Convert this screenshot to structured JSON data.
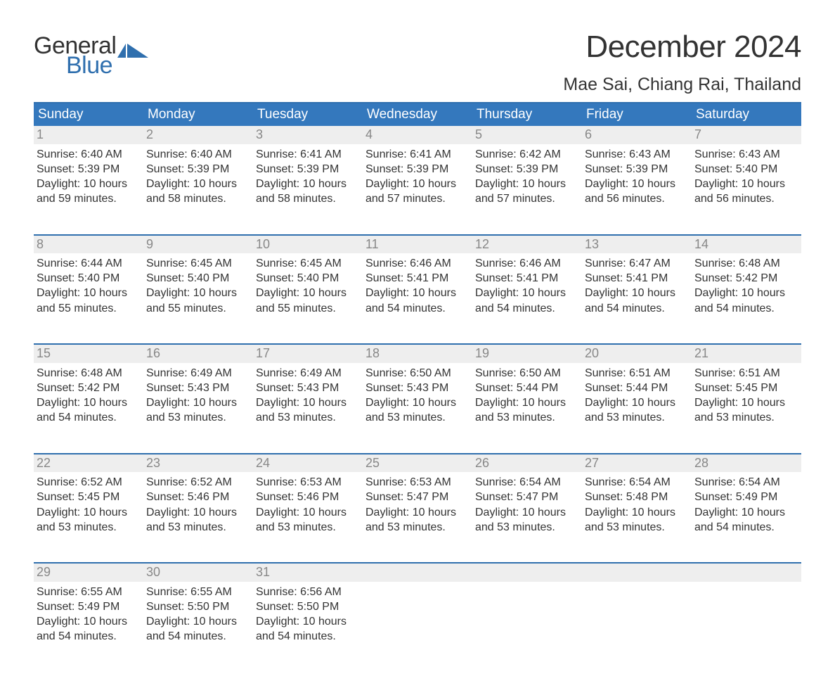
{
  "logo": {
    "text1": "General",
    "text2": "Blue",
    "icon_color": "#2f6fae",
    "text1_color": "#333333",
    "text2_color": "#2f6fae"
  },
  "title": "December 2024",
  "location": "Mae Sai, Chiang Rai, Thailand",
  "colors": {
    "header_bg": "#3478bd",
    "header_text": "#ffffff",
    "week_border": "#2f6fae",
    "daynum_bg": "#eeeeee",
    "daynum_text": "#888888",
    "body_text": "#333333",
    "page_bg": "#ffffff"
  },
  "typography": {
    "title_fontsize": 44,
    "location_fontsize": 25,
    "weekday_fontsize": 19,
    "daynum_fontsize": 18,
    "body_fontsize": 16,
    "logo_fontsize": 34,
    "font_family": "Arial"
  },
  "weekdays": [
    "Sunday",
    "Monday",
    "Tuesday",
    "Wednesday",
    "Thursday",
    "Friday",
    "Saturday"
  ],
  "weeks": [
    {
      "days": [
        {
          "num": "1",
          "sunrise": "Sunrise: 6:40 AM",
          "sunset": "Sunset: 5:39 PM",
          "dl1": "Daylight: 10 hours",
          "dl2": "and 59 minutes."
        },
        {
          "num": "2",
          "sunrise": "Sunrise: 6:40 AM",
          "sunset": "Sunset: 5:39 PM",
          "dl1": "Daylight: 10 hours",
          "dl2": "and 58 minutes."
        },
        {
          "num": "3",
          "sunrise": "Sunrise: 6:41 AM",
          "sunset": "Sunset: 5:39 PM",
          "dl1": "Daylight: 10 hours",
          "dl2": "and 58 minutes."
        },
        {
          "num": "4",
          "sunrise": "Sunrise: 6:41 AM",
          "sunset": "Sunset: 5:39 PM",
          "dl1": "Daylight: 10 hours",
          "dl2": "and 57 minutes."
        },
        {
          "num": "5",
          "sunrise": "Sunrise: 6:42 AM",
          "sunset": "Sunset: 5:39 PM",
          "dl1": "Daylight: 10 hours",
          "dl2": "and 57 minutes."
        },
        {
          "num": "6",
          "sunrise": "Sunrise: 6:43 AM",
          "sunset": "Sunset: 5:39 PM",
          "dl1": "Daylight: 10 hours",
          "dl2": "and 56 minutes."
        },
        {
          "num": "7",
          "sunrise": "Sunrise: 6:43 AM",
          "sunset": "Sunset: 5:40 PM",
          "dl1": "Daylight: 10 hours",
          "dl2": "and 56 minutes."
        }
      ]
    },
    {
      "days": [
        {
          "num": "8",
          "sunrise": "Sunrise: 6:44 AM",
          "sunset": "Sunset: 5:40 PM",
          "dl1": "Daylight: 10 hours",
          "dl2": "and 55 minutes."
        },
        {
          "num": "9",
          "sunrise": "Sunrise: 6:45 AM",
          "sunset": "Sunset: 5:40 PM",
          "dl1": "Daylight: 10 hours",
          "dl2": "and 55 minutes."
        },
        {
          "num": "10",
          "sunrise": "Sunrise: 6:45 AM",
          "sunset": "Sunset: 5:40 PM",
          "dl1": "Daylight: 10 hours",
          "dl2": "and 55 minutes."
        },
        {
          "num": "11",
          "sunrise": "Sunrise: 6:46 AM",
          "sunset": "Sunset: 5:41 PM",
          "dl1": "Daylight: 10 hours",
          "dl2": "and 54 minutes."
        },
        {
          "num": "12",
          "sunrise": "Sunrise: 6:46 AM",
          "sunset": "Sunset: 5:41 PM",
          "dl1": "Daylight: 10 hours",
          "dl2": "and 54 minutes."
        },
        {
          "num": "13",
          "sunrise": "Sunrise: 6:47 AM",
          "sunset": "Sunset: 5:41 PM",
          "dl1": "Daylight: 10 hours",
          "dl2": "and 54 minutes."
        },
        {
          "num": "14",
          "sunrise": "Sunrise: 6:48 AM",
          "sunset": "Sunset: 5:42 PM",
          "dl1": "Daylight: 10 hours",
          "dl2": "and 54 minutes."
        }
      ]
    },
    {
      "days": [
        {
          "num": "15",
          "sunrise": "Sunrise: 6:48 AM",
          "sunset": "Sunset: 5:42 PM",
          "dl1": "Daylight: 10 hours",
          "dl2": "and 54 minutes."
        },
        {
          "num": "16",
          "sunrise": "Sunrise: 6:49 AM",
          "sunset": "Sunset: 5:43 PM",
          "dl1": "Daylight: 10 hours",
          "dl2": "and 53 minutes."
        },
        {
          "num": "17",
          "sunrise": "Sunrise: 6:49 AM",
          "sunset": "Sunset: 5:43 PM",
          "dl1": "Daylight: 10 hours",
          "dl2": "and 53 minutes."
        },
        {
          "num": "18",
          "sunrise": "Sunrise: 6:50 AM",
          "sunset": "Sunset: 5:43 PM",
          "dl1": "Daylight: 10 hours",
          "dl2": "and 53 minutes."
        },
        {
          "num": "19",
          "sunrise": "Sunrise: 6:50 AM",
          "sunset": "Sunset: 5:44 PM",
          "dl1": "Daylight: 10 hours",
          "dl2": "and 53 minutes."
        },
        {
          "num": "20",
          "sunrise": "Sunrise: 6:51 AM",
          "sunset": "Sunset: 5:44 PM",
          "dl1": "Daylight: 10 hours",
          "dl2": "and 53 minutes."
        },
        {
          "num": "21",
          "sunrise": "Sunrise: 6:51 AM",
          "sunset": "Sunset: 5:45 PM",
          "dl1": "Daylight: 10 hours",
          "dl2": "and 53 minutes."
        }
      ]
    },
    {
      "days": [
        {
          "num": "22",
          "sunrise": "Sunrise: 6:52 AM",
          "sunset": "Sunset: 5:45 PM",
          "dl1": "Daylight: 10 hours",
          "dl2": "and 53 minutes."
        },
        {
          "num": "23",
          "sunrise": "Sunrise: 6:52 AM",
          "sunset": "Sunset: 5:46 PM",
          "dl1": "Daylight: 10 hours",
          "dl2": "and 53 minutes."
        },
        {
          "num": "24",
          "sunrise": "Sunrise: 6:53 AM",
          "sunset": "Sunset: 5:46 PM",
          "dl1": "Daylight: 10 hours",
          "dl2": "and 53 minutes."
        },
        {
          "num": "25",
          "sunrise": "Sunrise: 6:53 AM",
          "sunset": "Sunset: 5:47 PM",
          "dl1": "Daylight: 10 hours",
          "dl2": "and 53 minutes."
        },
        {
          "num": "26",
          "sunrise": "Sunrise: 6:54 AM",
          "sunset": "Sunset: 5:47 PM",
          "dl1": "Daylight: 10 hours",
          "dl2": "and 53 minutes."
        },
        {
          "num": "27",
          "sunrise": "Sunrise: 6:54 AM",
          "sunset": "Sunset: 5:48 PM",
          "dl1": "Daylight: 10 hours",
          "dl2": "and 53 minutes."
        },
        {
          "num": "28",
          "sunrise": "Sunrise: 6:54 AM",
          "sunset": "Sunset: 5:49 PM",
          "dl1": "Daylight: 10 hours",
          "dl2": "and 54 minutes."
        }
      ]
    },
    {
      "days": [
        {
          "num": "29",
          "sunrise": "Sunrise: 6:55 AM",
          "sunset": "Sunset: 5:49 PM",
          "dl1": "Daylight: 10 hours",
          "dl2": "and 54 minutes."
        },
        {
          "num": "30",
          "sunrise": "Sunrise: 6:55 AM",
          "sunset": "Sunset: 5:50 PM",
          "dl1": "Daylight: 10 hours",
          "dl2": "and 54 minutes."
        },
        {
          "num": "31",
          "sunrise": "Sunrise: 6:56 AM",
          "sunset": "Sunset: 5:50 PM",
          "dl1": "Daylight: 10 hours",
          "dl2": "and 54 minutes."
        },
        {
          "num": "",
          "sunrise": "",
          "sunset": "",
          "dl1": "",
          "dl2": ""
        },
        {
          "num": "",
          "sunrise": "",
          "sunset": "",
          "dl1": "",
          "dl2": ""
        },
        {
          "num": "",
          "sunrise": "",
          "sunset": "",
          "dl1": "",
          "dl2": ""
        },
        {
          "num": "",
          "sunrise": "",
          "sunset": "",
          "dl1": "",
          "dl2": ""
        }
      ]
    }
  ]
}
